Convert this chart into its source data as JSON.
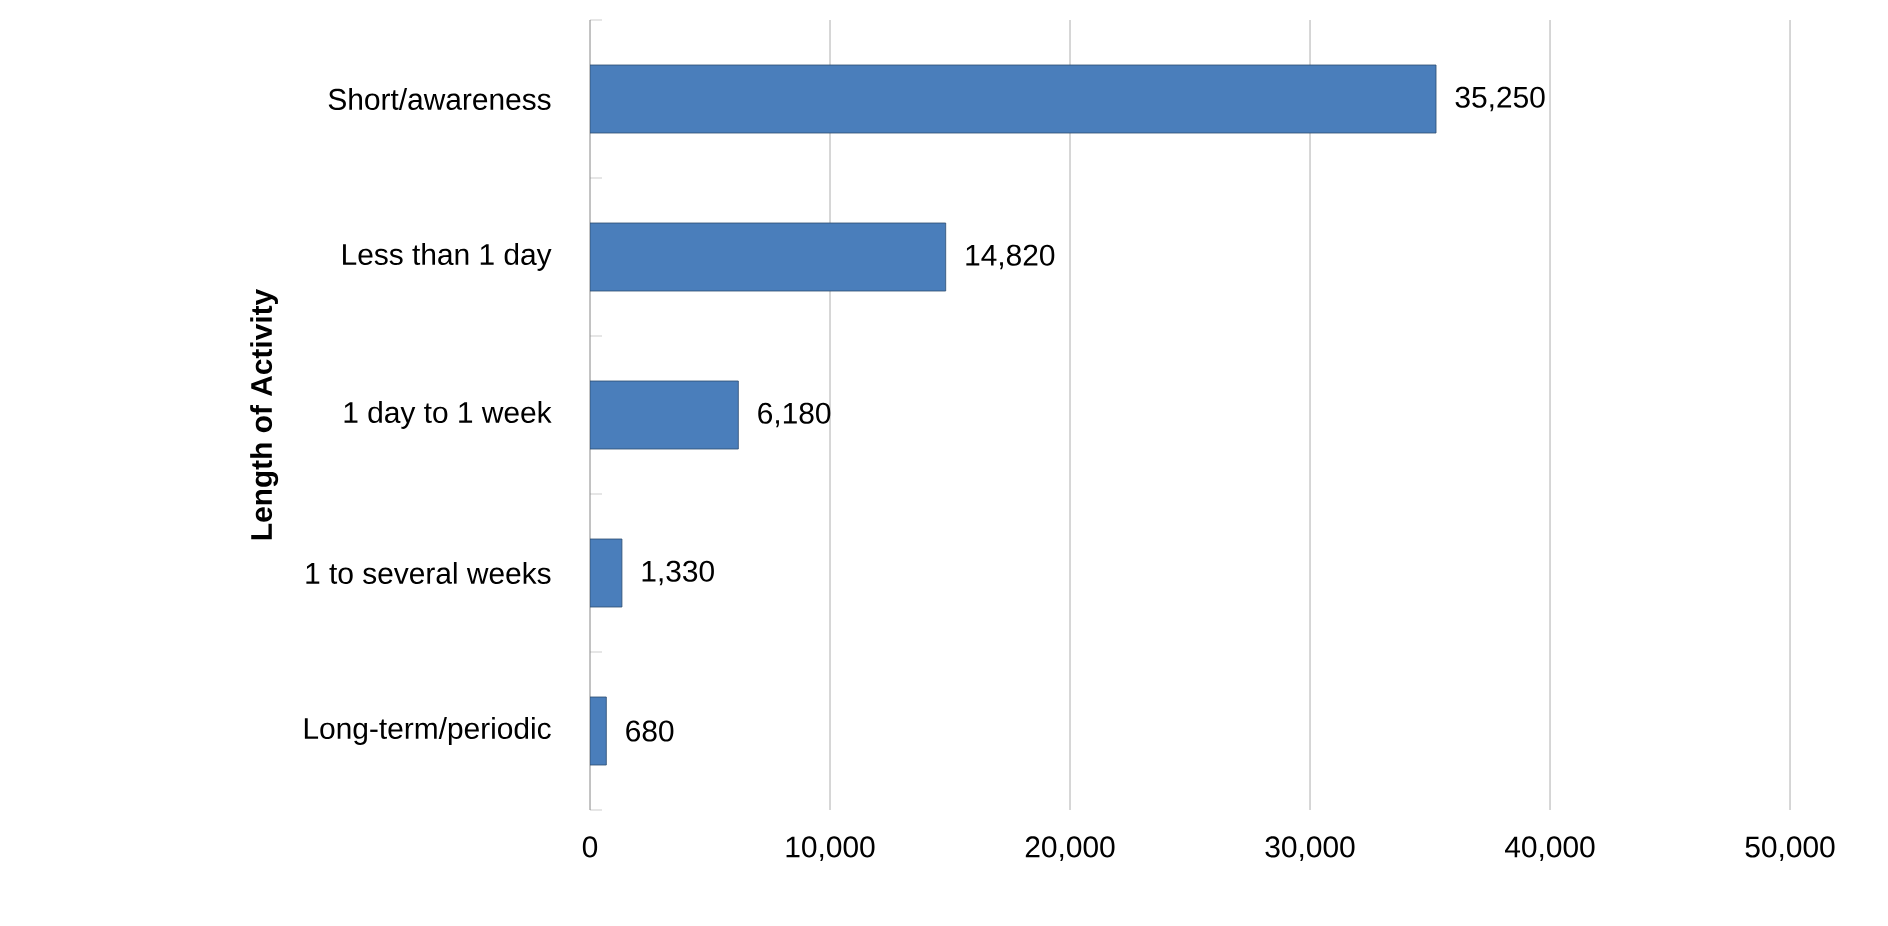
{
  "chart_data": {
    "type": "bar",
    "orientation": "horizontal",
    "ylabel": "Length of Activity",
    "categories": [
      "Short/awareness",
      "Less than 1 day",
      "1 day to 1 week",
      "1 to several weeks",
      "Long-term/periodic"
    ],
    "values": [
      35250,
      14820,
      6180,
      1330,
      680
    ],
    "value_labels": [
      "35,250",
      "14,820",
      "6,180",
      "1,330",
      "680"
    ],
    "color": "#4a7ebb",
    "xlim": [
      0,
      50000
    ],
    "xticks": [
      0,
      {
        "value": 10000,
        "label": "10,000"
      },
      {
        "value": 20000,
        "label": "20,000"
      },
      {
        "value": 30000,
        "label": "30,000"
      },
      {
        "value": 40000,
        "label": "40,000"
      },
      {
        "value": 50000,
        "label": "50,000"
      }
    ],
    "grid": "x"
  }
}
